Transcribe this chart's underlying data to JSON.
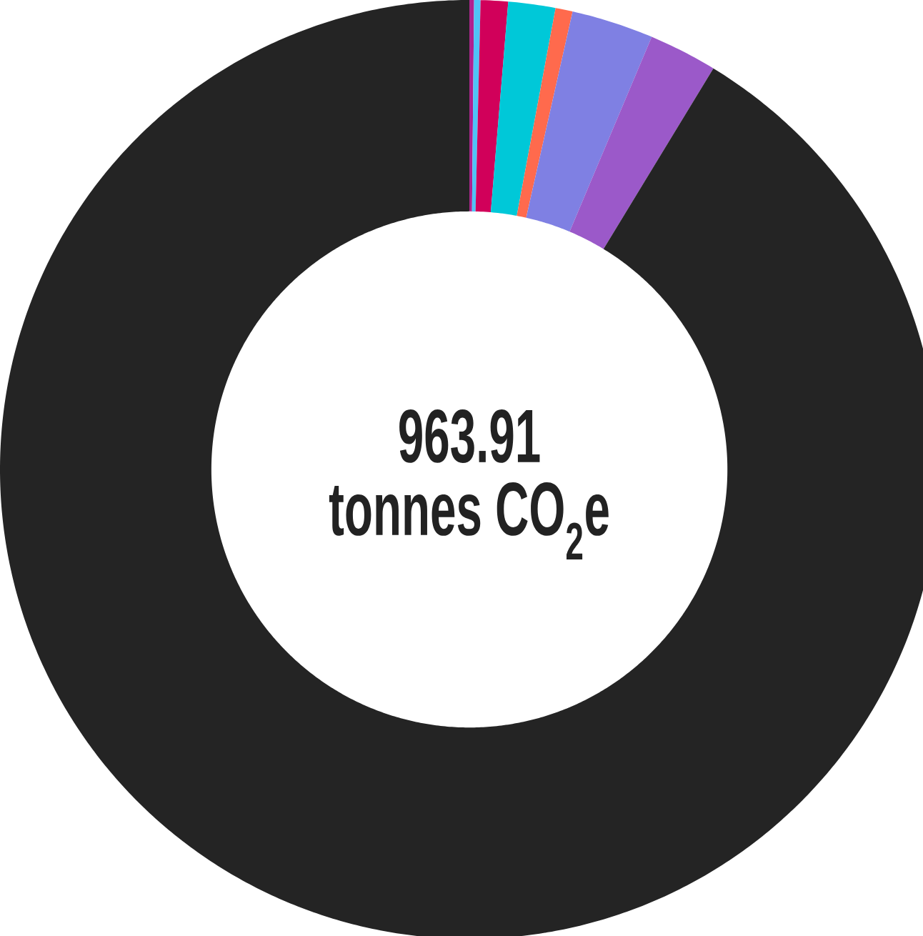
{
  "chart_data": {
    "type": "donut",
    "title": "963.91",
    "subtitle": "tonnes CO$_{2}$e",
    "categories": [
      null,
      null,
      null,
      null,
      null,
      null,
      null,
      null
    ],
    "values": [
      0.16,
      0.22,
      0.94,
      1.62,
      0.59,
      2.82,
      2.35,
      91.3
    ],
    "colors": [
      "#b0208f",
      "#4fc3f7",
      "#d1005a",
      "#00c8d8",
      "#ff6a4d",
      "#7f80e3",
      "#9b59c9",
      "#242424"
    ]
  }
}
